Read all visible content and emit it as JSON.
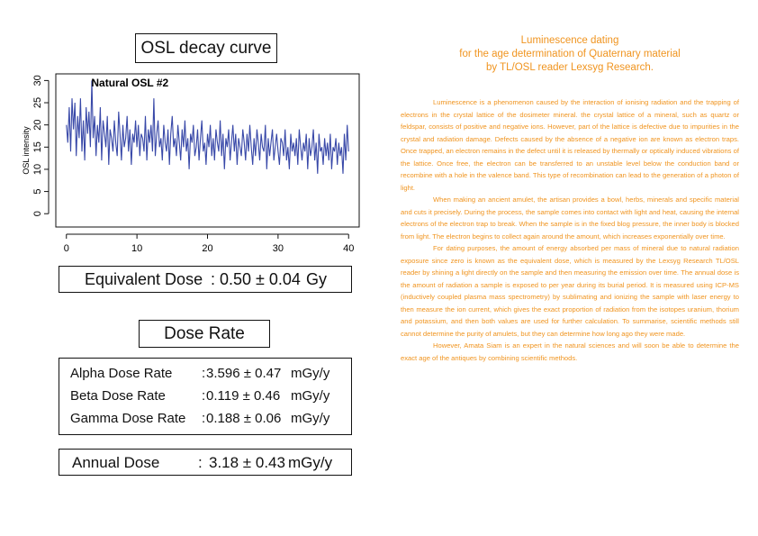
{
  "left": {
    "title": "OSL decay curve",
    "equivalent_dose": {
      "label": "Equivalent Dose",
      "colon": ":",
      "value": "0.50 ± 0.04",
      "unit": "Gy"
    },
    "dose_rate_title": "Dose Rate",
    "dose_rates": [
      {
        "label": "Alpha Dose Rate",
        "colon": ":",
        "value": "3.596 ± 0.47",
        "unit": "mGy/y"
      },
      {
        "label": "Beta Dose Rate",
        "colon": ":",
        "value": "0.119 ± 0.46",
        "unit": "mGy/y"
      },
      {
        "label": "Gamma Dose Rate",
        "colon": ":",
        "value": "0.188 ± 0.06",
        "unit": "mGy/y"
      }
    ],
    "annual_dose": {
      "label": "Annual Dose",
      "colon": ":",
      "value": "3.18 ± 0.43",
      "unit": "mGy/y"
    }
  },
  "right": {
    "heading": [
      "Luminescence dating",
      "for the age determination of Quaternary material",
      "by TL/OSL reader Lexsyg Research."
    ],
    "paragraphs": [
      "Luminescence is a phenomenon caused by the interaction of ionising radiation and the trapping of electrons in the crystal lattice of the dosimeter mineral. the crystal lattice of a mineral, such as quartz or feldspar, consists of positive and negative ions. However, part of the lattice is defective due to impurities in the crystal and radiation damage. Defects caused by the absence of a negative ion are known as electron traps. Once trapped, an electron remains in the defect until it is released by thermally or optically induced vibrations of the lattice. Once free, the electron can be transferred to an unstable level below the conduction band or recombine with a hole in the valence band. This type of recombination can lead to the generation of a photon of light.",
      "When making an ancient amulet, the artisan provides a bowl, herbs, minerals and specific material and cuts it precisely. During the process, the sample comes into contact with light and heat, causing the internal electrons of the electron trap to break. When the sample is in the fixed blog pressure, the inner body is blocked from light. The electron begins to collect again around the amount, which increases exponentially over time.",
      "For dating purposes, the amount of energy absorbed per mass of mineral due to natural radiation exposure since zero is known as the equivalent dose, which is measured by the Lexsyg Research TL/OSL reader by shining a light directly on the sample and then measuring the emission over time. The annual dose is the amount of radiation a sample is exposed to per year during its burial period. It is measured using ICP-MS (inductively coupled plasma mass spectrometry) by sublimating and ionizing the sample with laser energy to then measure the ion current, which gives the exact proportion of radiation from the isotopes uranium, thorium and potassium, and then both values are used for further calculation. To summarise, scientific methods still cannot determine the purity of amulets, but they can determine how long ago they were made.",
      "However, Amata Siam is an expert in the natural sciences and will soon be able to determine the exact age of the antiques by combining scientific methods."
    ]
  },
  "chart_data": {
    "type": "line",
    "title": "Natural OSL #2",
    "xlabel": "",
    "ylabel": "OSL intensity",
    "xlim": [
      0,
      40
    ],
    "ylim": [
      0,
      30
    ],
    "xticks": [
      0,
      10,
      20,
      30,
      40
    ],
    "yticks": [
      0,
      5,
      10,
      15,
      20,
      25,
      30
    ],
    "grid": false,
    "color": "#3848a8",
    "series": [
      {
        "x": [
          0,
          0.2,
          0.4,
          0.6,
          0.8,
          1.0,
          1.2,
          1.4,
          1.6,
          1.8,
          2.0,
          2.2,
          2.4,
          2.6,
          2.8,
          3.0,
          3.2,
          3.4,
          3.6,
          3.8,
          4.0,
          4.2,
          4.4,
          4.6,
          4.8,
          5.0,
          5.2,
          5.4,
          5.6,
          5.8,
          6.0,
          6.2,
          6.4,
          6.6,
          6.8,
          7.0,
          7.2,
          7.4,
          7.6,
          7.8,
          8.0,
          8.2,
          8.4,
          8.6,
          8.8,
          9.0,
          9.2,
          9.4,
          9.6,
          9.8,
          10.0,
          10.2,
          10.4,
          10.6,
          10.8,
          11.0,
          11.2,
          11.4,
          11.6,
          11.8,
          12.0,
          12.2,
          12.4,
          12.6,
          12.8,
          13.0,
          13.2,
          13.4,
          13.6,
          13.8,
          14.0,
          14.2,
          14.4,
          14.6,
          14.8,
          15.0,
          15.2,
          15.4,
          15.6,
          15.8,
          16.0,
          16.2,
          16.4,
          16.6,
          16.8,
          17.0,
          17.2,
          17.4,
          17.6,
          17.8,
          18.0,
          18.2,
          18.4,
          18.6,
          18.8,
          19.0,
          19.2,
          19.4,
          19.6,
          19.8,
          20.0,
          20.2,
          20.4,
          20.6,
          20.8,
          21.0,
          21.2,
          21.4,
          21.6,
          21.8,
          22.0,
          22.2,
          22.4,
          22.6,
          22.8,
          23.0,
          23.2,
          23.4,
          23.6,
          23.8,
          24.0,
          24.2,
          24.4,
          24.6,
          24.8,
          25.0,
          25.2,
          25.4,
          25.6,
          25.8,
          26.0,
          26.2,
          26.4,
          26.6,
          26.8,
          27.0,
          27.2,
          27.4,
          27.6,
          27.8,
          28.0,
          28.2,
          28.4,
          28.6,
          28.8,
          29.0,
          29.2,
          29.4,
          29.6,
          29.8,
          30.0,
          30.2,
          30.4,
          30.6,
          30.8,
          31.0,
          31.2,
          31.4,
          31.6,
          31.8,
          32.0,
          32.2,
          32.4,
          32.6,
          32.8,
          33.0,
          33.2,
          33.4,
          33.6,
          33.8,
          34.0,
          34.2,
          34.4,
          34.6,
          34.8,
          35.0,
          35.2,
          35.4,
          35.6,
          35.8,
          36.0,
          36.2,
          36.4,
          36.6,
          36.8,
          37.0,
          37.2,
          37.4,
          37.6,
          37.8,
          38.0,
          38.2,
          38.4,
          38.6,
          38.8,
          39.0,
          39.2,
          39.4,
          39.6,
          39.8,
          40.0
        ],
        "y": [
          20,
          16,
          24,
          14,
          26,
          19,
          25,
          13,
          22,
          17,
          26,
          14,
          21,
          12,
          24,
          18,
          23,
          15,
          30,
          17,
          22,
          13,
          20,
          16,
          24,
          12,
          21,
          18,
          15,
          22,
          11,
          19,
          17,
          14,
          21,
          16,
          13,
          23,
          18,
          12,
          20,
          15,
          17,
          22,
          14,
          19,
          11,
          18,
          16,
          21,
          15,
          20,
          13,
          18,
          17,
          14,
          22,
          12,
          19,
          16,
          20,
          14,
          26,
          13,
          18,
          21,
          15,
          17,
          12,
          20,
          16,
          14,
          19,
          11,
          18,
          22,
          15,
          17,
          13,
          20,
          16,
          12,
          19,
          15,
          21,
          14,
          17,
          10,
          18,
          16,
          20,
          13,
          15,
          19,
          12,
          17,
          21,
          14,
          16,
          11,
          18,
          15,
          20,
          13,
          17,
          12,
          19,
          16,
          14,
          21,
          13,
          18,
          10,
          17,
          15,
          19,
          12,
          16,
          20,
          14,
          18,
          11,
          17,
          15,
          13,
          19,
          16,
          12,
          18,
          14,
          20,
          15,
          11,
          17,
          13,
          19,
          16,
          12,
          18,
          15,
          14,
          20,
          10,
          17,
          13,
          16,
          19,
          12,
          15,
          18,
          14,
          11,
          17,
          16,
          13,
          19,
          12,
          15,
          10,
          18,
          14,
          16,
          13,
          17,
          11,
          19,
          15,
          12,
          16,
          14,
          18,
          10,
          17,
          13,
          15,
          19,
          12,
          16,
          9,
          18,
          14,
          15,
          11,
          17,
          13,
          16,
          12,
          18,
          10,
          15,
          14,
          17,
          11,
          16,
          13,
          15,
          9,
          18,
          12,
          20,
          14
        ]
      }
    ]
  }
}
